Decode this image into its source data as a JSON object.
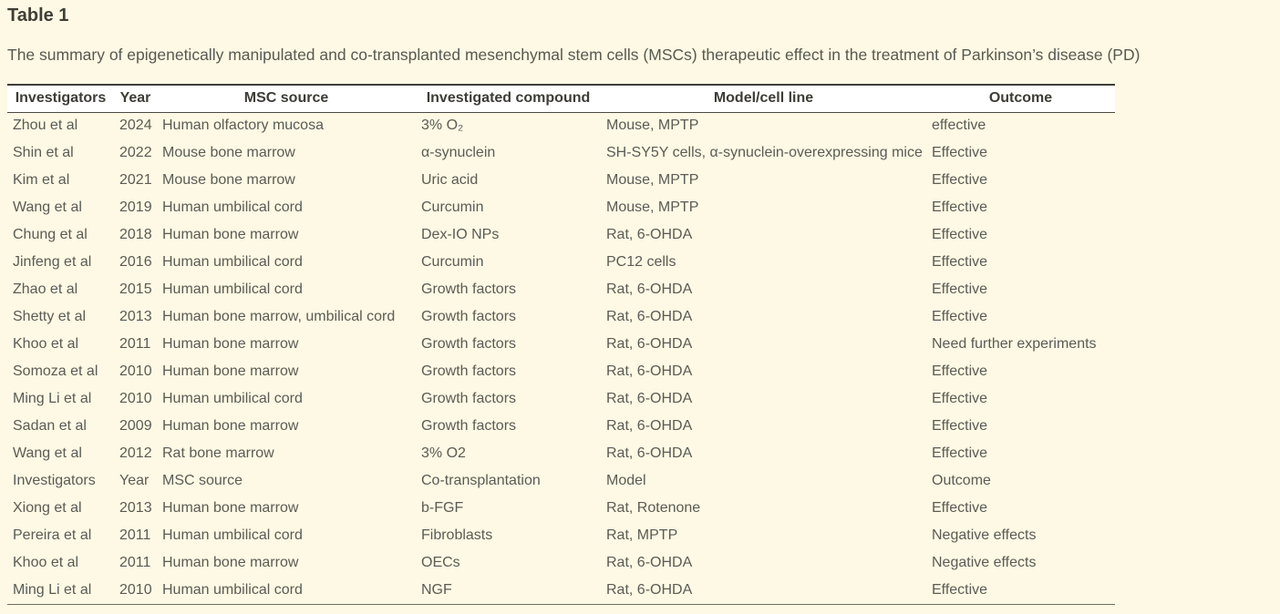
{
  "page": {
    "title": "Table 1",
    "caption": "The summary of epigenetically manipulated and co-transplanted mesenchymal stem cells (MSCs) therapeutic effect in the treatment of Parkinson’s disease (PD)"
  },
  "colors": {
    "page_background": "#fdf9e4",
    "header_row_background": "#ffffff",
    "title_text": "#403e35",
    "header_text": "#3d3c36",
    "body_text": "#5c5b54",
    "table_top_border": "#3f3e39",
    "table_bottom_border": "#6e6d63"
  },
  "table": {
    "columns": [
      "Investigators",
      "Year",
      "MSC source",
      "Investigated compound",
      "Model/cell line",
      "Outcome"
    ],
    "rows": [
      [
        "Zhou et al",
        "2024",
        "Human olfactory mucosa",
        "3% O₂",
        "Mouse, MPTP",
        "effective"
      ],
      [
        "Shin et al",
        "2022",
        "Mouse bone marrow",
        "α-synuclein",
        "SH-SY5Y cells, α-synuclein-overexpressing mice",
        "Effective"
      ],
      [
        "Kim et al",
        "2021",
        "Mouse bone marrow",
        "Uric acid",
        "Mouse, MPTP",
        "Effective"
      ],
      [
        "Wang et al",
        "2019",
        "Human umbilical cord",
        "Curcumin",
        "Mouse, MPTP",
        "Effective"
      ],
      [
        "Chung et al",
        "2018",
        "Human bone marrow",
        "Dex-IO NPs",
        "Rat, 6-OHDA",
        "Effective"
      ],
      [
        "Jinfeng et al",
        "2016",
        "Human umbilical cord",
        "Curcumin",
        "PC12 cells",
        "Effective"
      ],
      [
        "Zhao et al",
        "2015",
        "Human umbilical cord",
        "Growth factors",
        "Rat, 6-OHDA",
        "Effective"
      ],
      [
        "Shetty et al",
        "2013",
        "Human bone marrow, umbilical cord",
        "Growth factors",
        "Rat, 6-OHDA",
        "Effective"
      ],
      [
        "Khoo et al",
        "2011",
        "Human bone marrow",
        "Growth factors",
        "Rat, 6-OHDA",
        "Need further experiments"
      ],
      [
        "Somoza et al",
        "2010",
        "Human bone marrow",
        "Growth factors",
        "Rat, 6-OHDA",
        "Effective"
      ],
      [
        "Ming Li et al",
        "2010",
        "Human umbilical cord",
        "Growth factors",
        "Rat, 6-OHDA",
        "Effective"
      ],
      [
        "Sadan et al",
        "2009",
        "Human bone marrow",
        "Growth factors",
        "Rat, 6-OHDA",
        "Effective"
      ],
      [
        "Wang et al",
        "2012",
        "Rat bone marrow",
        "3% O2",
        "Rat, 6-OHDA",
        "Effective"
      ],
      [
        "Investigators",
        "Year",
        "MSC source",
        "Co-transplantation",
        "Model",
        "Outcome"
      ],
      [
        "Xiong et al",
        "2013",
        "Human bone marrow",
        "b-FGF",
        "Rat, Rotenone",
        "Effective"
      ],
      [
        "Pereira et al",
        "2011",
        "Human umbilical cord",
        "Fibroblasts",
        "Rat, MPTP",
        "Negative effects"
      ],
      [
        "Khoo et al",
        "2011",
        "Human bone marrow",
        "OECs",
        "Rat, 6-OHDA",
        "Negative effects"
      ],
      [
        "Ming Li et al",
        "2010",
        "Human umbilical cord",
        "NGF",
        "Rat, 6-OHDA",
        "Effective"
      ]
    ]
  }
}
